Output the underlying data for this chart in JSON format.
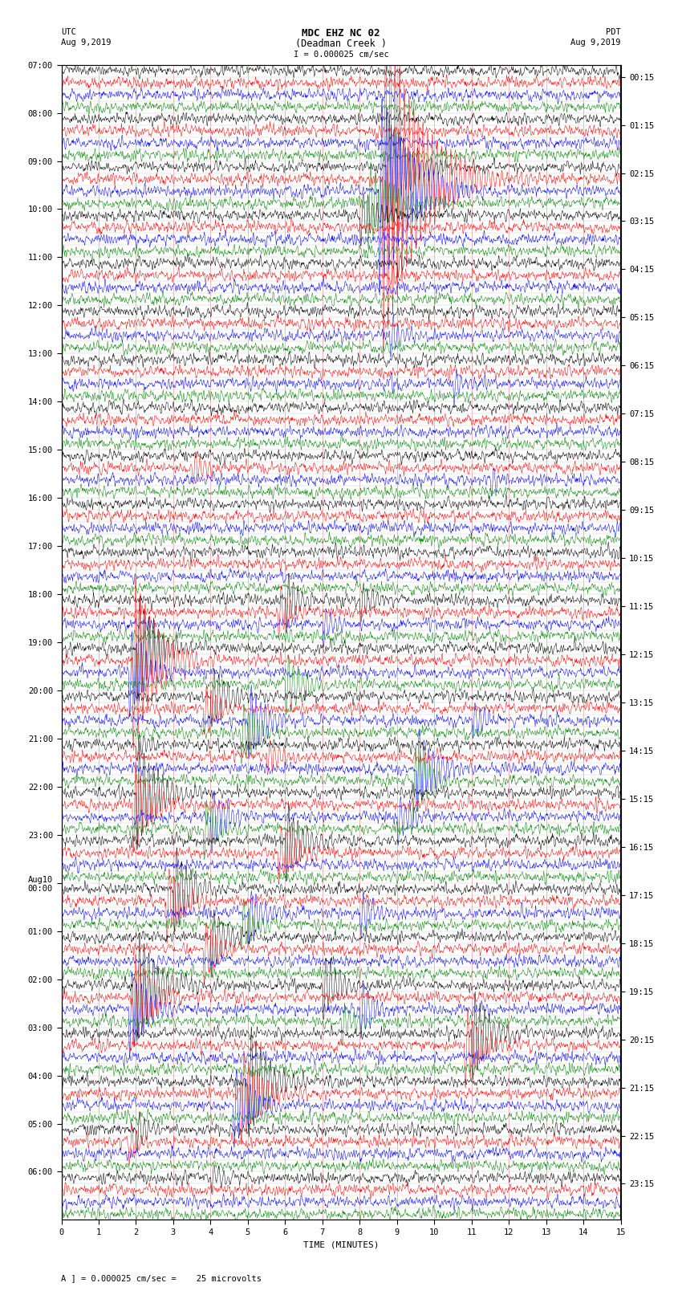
{
  "title_line1": "MDC EHZ NC 02",
  "title_line2": "(Deadman Creek )",
  "scale_label": "I = 0.000025 cm/sec",
  "footer_label": "A ] = 0.000025 cm/sec =    25 microvolts",
  "xlabel": "TIME (MINUTES)",
  "left_header_line1": "UTC",
  "left_header_line2": "Aug 9,2019",
  "right_header_line1": "PDT",
  "right_header_line2": "Aug 9,2019",
  "colors": [
    "black",
    "red",
    "blue",
    "green"
  ],
  "bg_color": "white",
  "fig_width": 8.5,
  "fig_height": 16.13,
  "xmin": 0,
  "xmax": 15,
  "total_traces": 96,
  "left_tick_hours": [
    "07:00",
    "08:00",
    "09:00",
    "10:00",
    "11:00",
    "12:00",
    "13:00",
    "14:00",
    "15:00",
    "16:00",
    "17:00",
    "18:00",
    "19:00",
    "20:00",
    "21:00",
    "22:00",
    "23:00",
    "Aug10\n00:00",
    "01:00",
    "02:00",
    "03:00",
    "04:00",
    "05:00",
    "06:00"
  ],
  "right_tick_times": [
    "00:15",
    "01:15",
    "02:15",
    "03:15",
    "04:15",
    "05:15",
    "06:15",
    "07:15",
    "08:15",
    "09:15",
    "10:15",
    "11:15",
    "12:15",
    "13:15",
    "14:15",
    "15:15",
    "16:15",
    "17:15",
    "18:15",
    "19:15",
    "20:15",
    "21:15",
    "22:15",
    "23:15"
  ]
}
